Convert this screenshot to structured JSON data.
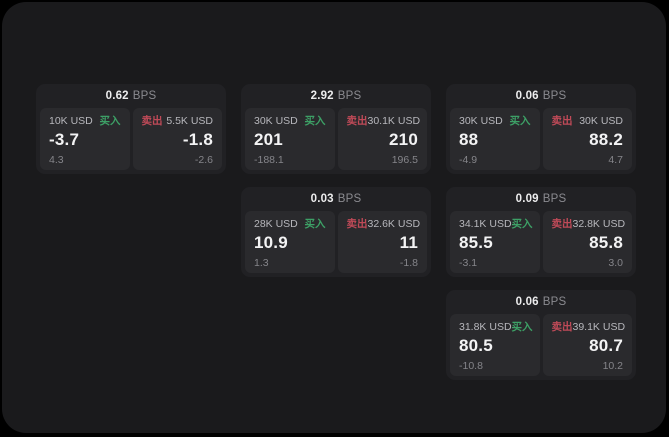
{
  "labels": {
    "unit": "BPS",
    "buy": "买入",
    "sell": "卖出"
  },
  "colors": {
    "background": "#000000",
    "surface": "#1a1a1c",
    "card": "#212124",
    "panel": "#2a2a2d",
    "buy_green": "#3da066",
    "sell_red": "#c04a58",
    "value_text": "#f3f3f4",
    "muted_text": "#85858a"
  },
  "cards": [
    {
      "bps": "0.62",
      "buy": {
        "amount": "10K USD",
        "value": "-3.7",
        "change": "4.3"
      },
      "sell": {
        "amount": "5.5K USD",
        "value": "-1.8",
        "change": "-2.6"
      }
    },
    {
      "bps": "2.92",
      "buy": {
        "amount": "30K USD",
        "value": "201",
        "change": "-188.1"
      },
      "sell": {
        "amount": "30.1K USD",
        "value": "210",
        "change": "196.5"
      }
    },
    {
      "bps": "0.06",
      "buy": {
        "amount": "30K USD",
        "value": "88",
        "change": "-4.9"
      },
      "sell": {
        "amount": "30K USD",
        "value": "88.2",
        "change": "4.7"
      }
    },
    {
      "bps": "0.03",
      "buy": {
        "amount": "28K USD",
        "value": "10.9",
        "change": "1.3"
      },
      "sell": {
        "amount": "32.6K USD",
        "value": "11",
        "change": "-1.8"
      }
    },
    {
      "bps": "0.09",
      "buy": {
        "amount": "34.1K USD",
        "value": "85.5",
        "change": "-3.1"
      },
      "sell": {
        "amount": "32.8K USD",
        "value": "85.8",
        "change": "3.0"
      }
    },
    {
      "bps": "0.06",
      "buy": {
        "amount": "31.8K USD",
        "value": "80.5",
        "change": "-10.8"
      },
      "sell": {
        "amount": "39.1K USD",
        "value": "80.7",
        "change": "10.2"
      }
    }
  ]
}
